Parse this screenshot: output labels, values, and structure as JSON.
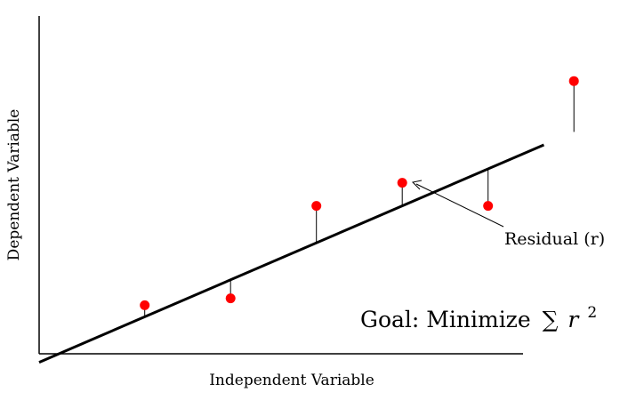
{
  "chart_data": {
    "type": "scatter",
    "xlabel": "Independent Variable",
    "ylabel": "Dependent Variable",
    "x": [
      1,
      2,
      3,
      4,
      5,
      6
    ],
    "y": [
      1.5,
      1.8,
      5.8,
      6.8,
      5.8,
      11.2
    ],
    "fit_line": {
      "slope": 1.6,
      "intercept": -0.6
    },
    "residual_annotation": "Residual (r)",
    "goal_annotation": {
      "text": "Goal: Minimize",
      "sum_symbol": "∑",
      "variable": "r",
      "exponent": "2"
    },
    "grid": false,
    "point_color": "#ff0000",
    "line_color": "#000000"
  }
}
